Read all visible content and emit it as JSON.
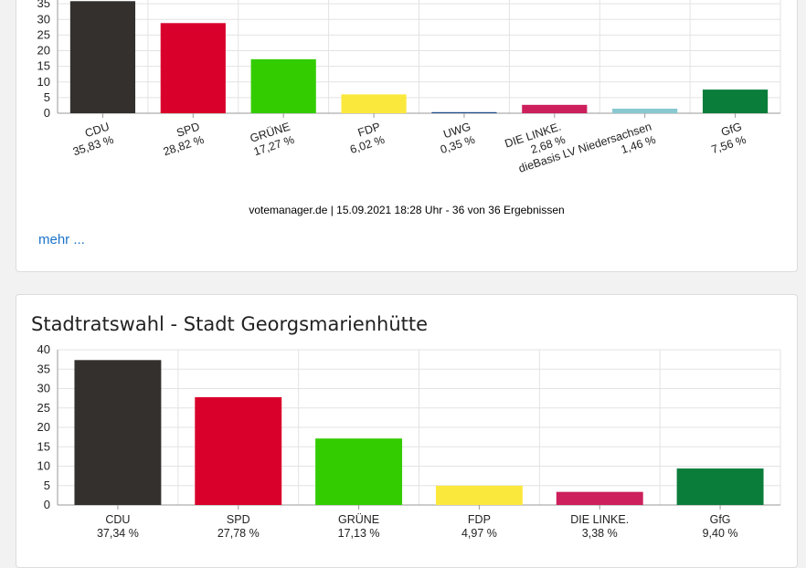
{
  "card1": {
    "footer": "votemanager.de | 15.09.2021 18:28 Uhr - 36 von 36 Ergebnissen",
    "more_label": "mehr ..."
  },
  "card2": {
    "title": "Stadtratswahl - Stadt Georgsmarienhütte"
  },
  "chart_data": [
    {
      "type": "bar",
      "title": "",
      "categories": [
        "CDU",
        "SPD",
        "GRÜNE",
        "FDP",
        "UWG",
        "DIE LINKE.",
        "dieBasis LV Niedersachsen",
        "GfG"
      ],
      "value_labels": [
        "35,83 %",
        "28,82 %",
        "17,27 %",
        "6,02 %",
        "0,35 %",
        "2,68 %",
        "1,46 %",
        "7,56 %"
      ],
      "values": [
        35.83,
        28.82,
        17.27,
        6.02,
        0.35,
        2.68,
        1.46,
        7.56
      ],
      "colors": [
        "#33302e",
        "#d9002b",
        "#33cc00",
        "#fbe83c",
        "#1f4e8c",
        "#cc1f5c",
        "#88c8d0",
        "#0b7d3b"
      ],
      "yticks": [
        0,
        5,
        10,
        15,
        20,
        25,
        30,
        35
      ],
      "ylim": [
        0,
        40
      ],
      "grid": true,
      "rotated_labels": true
    },
    {
      "type": "bar",
      "title": "Stadtratswahl - Stadt Georgsmarienhütte",
      "categories": [
        "CDU",
        "SPD",
        "GRÜNE",
        "FDP",
        "DIE LINKE.",
        "GfG"
      ],
      "value_labels": [
        "37,34 %",
        "27,78 %",
        "17,13 %",
        "4,97 %",
        "3,38 %",
        "9,40 %"
      ],
      "values": [
        37.34,
        27.78,
        17.13,
        4.97,
        3.38,
        9.4
      ],
      "colors": [
        "#33302e",
        "#d9002b",
        "#33cc00",
        "#fbe83c",
        "#cc1f5c",
        "#0b7d3b"
      ],
      "yticks": [
        0,
        5,
        10,
        15,
        20,
        25,
        30,
        35,
        40
      ],
      "ylim": [
        0,
        40
      ],
      "grid": true,
      "rotated_labels": false
    }
  ]
}
